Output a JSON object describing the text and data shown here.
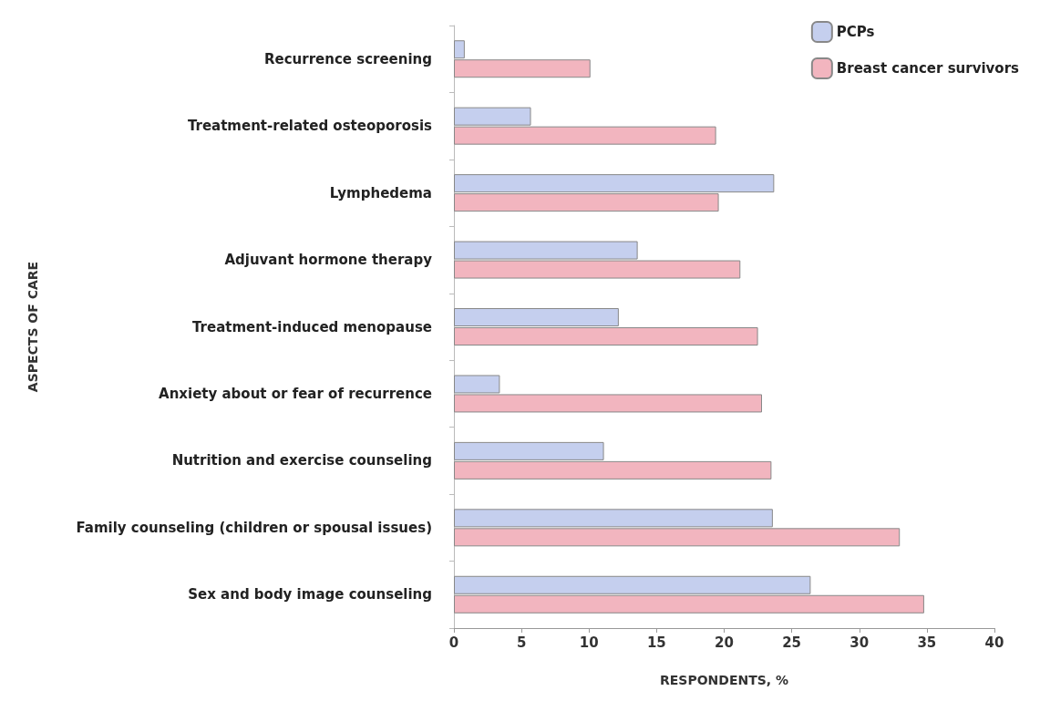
{
  "chart_data": {
    "type": "bar",
    "orientation": "horizontal",
    "xlabel": "RESPONDENTS, %",
    "ylabel": "ASPECTS OF CARE",
    "categories": [
      "Recurrence screening",
      "Treatment-related osteoporosis",
      "Lymphedema",
      "Adjuvant hormone therapy",
      "Treatment-induced menopause",
      "Anxiety about or fear of recurrence",
      "Nutrition and exercise counseling",
      "Family counseling (children or spousal issues)",
      "Sex and body image counseling"
    ],
    "series": [
      {
        "name": "PCPs",
        "color": "#c5cfee",
        "values": [
          0.8,
          5.7,
          23.7,
          13.6,
          12.2,
          3.4,
          11.1,
          23.6,
          26.4
        ]
      },
      {
        "name": "Breast cancer survivors",
        "color": "#f2b5bf",
        "values": [
          10.1,
          19.4,
          19.6,
          21.2,
          22.5,
          22.8,
          23.5,
          33.0,
          34.8
        ]
      }
    ],
    "xlim": [
      0,
      40
    ],
    "xticks": [
      0,
      5,
      10,
      15,
      20,
      25,
      30,
      35,
      40
    ],
    "grid": false,
    "legend": "top right"
  }
}
